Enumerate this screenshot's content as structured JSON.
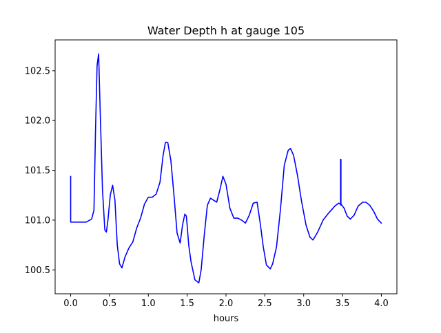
{
  "chart_data": {
    "type": "line",
    "title": "Water Depth h at gauge 105",
    "xlabel": "hours",
    "ylabel": "",
    "xlim": [
      -0.2,
      4.2
    ],
    "ylim": [
      100.26,
      102.81
    ],
    "xticks": [
      0.0,
      0.5,
      1.0,
      1.5,
      2.0,
      2.5,
      3.0,
      3.5,
      4.0
    ],
    "xtick_labels": [
      "0.0",
      "0.5",
      "1.0",
      "1.5",
      "2.0",
      "2.5",
      "3.0",
      "3.5",
      "4.0"
    ],
    "yticks": [
      100.5,
      101.0,
      101.5,
      102.0,
      102.5
    ],
    "ytick_labels": [
      "100.5",
      "101.0",
      "101.5",
      "102.0",
      "102.5"
    ],
    "grid": false,
    "series": [
      {
        "color": "#0000ff",
        "x": [
          0.0,
          0.0,
          0.0,
          0.1,
          0.2,
          0.27,
          0.3,
          0.32,
          0.34,
          0.36,
          0.38,
          0.41,
          0.44,
          0.46,
          0.48,
          0.51,
          0.54,
          0.57,
          0.6,
          0.63,
          0.66,
          0.7,
          0.75,
          0.8,
          0.85,
          0.9,
          0.95,
          1.0,
          1.05,
          1.1,
          1.15,
          1.19,
          1.22,
          1.25,
          1.29,
          1.33,
          1.37,
          1.41,
          1.44,
          1.47,
          1.49,
          1.52,
          1.55,
          1.6,
          1.65,
          1.68,
          1.72,
          1.76,
          1.8,
          1.84,
          1.88,
          1.92,
          1.96,
          2.0,
          2.05,
          2.1,
          2.15,
          2.2,
          2.25,
          2.3,
          2.35,
          2.4,
          2.44,
          2.48,
          2.52,
          2.57,
          2.6,
          2.65,
          2.7,
          2.75,
          2.8,
          2.83,
          2.87,
          2.92,
          2.97,
          3.03,
          3.08,
          3.12,
          3.18,
          3.25,
          3.32,
          3.4,
          3.45,
          3.47,
          3.475,
          3.475,
          3.48,
          3.48,
          3.48,
          3.52,
          3.56,
          3.6,
          3.65,
          3.7,
          3.76,
          3.8,
          3.85,
          3.9,
          3.95,
          4.0
        ],
        "y": [
          101.44,
          101.05,
          100.98,
          100.98,
          100.98,
          101.01,
          101.1,
          101.9,
          102.55,
          102.67,
          102.1,
          101.3,
          100.9,
          100.88,
          101.0,
          101.25,
          101.35,
          101.2,
          100.75,
          100.56,
          100.52,
          100.63,
          100.72,
          100.78,
          100.92,
          101.02,
          101.16,
          101.23,
          101.23,
          101.26,
          101.38,
          101.65,
          101.78,
          101.78,
          101.6,
          101.25,
          100.87,
          100.77,
          100.95,
          101.06,
          101.04,
          100.75,
          100.58,
          100.4,
          100.37,
          100.5,
          100.85,
          101.15,
          101.22,
          101.2,
          101.18,
          101.3,
          101.44,
          101.36,
          101.12,
          101.02,
          101.02,
          101.0,
          100.97,
          101.05,
          101.17,
          101.18,
          100.97,
          100.73,
          100.55,
          100.51,
          100.56,
          100.73,
          101.1,
          101.55,
          101.7,
          101.72,
          101.65,
          101.45,
          101.2,
          100.95,
          100.83,
          100.8,
          100.88,
          101.0,
          101.07,
          101.14,
          101.17,
          101.16,
          101.17,
          101.61,
          101.61,
          101.15,
          101.16,
          101.12,
          101.04,
          101.01,
          101.05,
          101.14,
          101.18,
          101.18,
          101.15,
          101.09,
          101.01,
          100.97
        ]
      }
    ]
  }
}
